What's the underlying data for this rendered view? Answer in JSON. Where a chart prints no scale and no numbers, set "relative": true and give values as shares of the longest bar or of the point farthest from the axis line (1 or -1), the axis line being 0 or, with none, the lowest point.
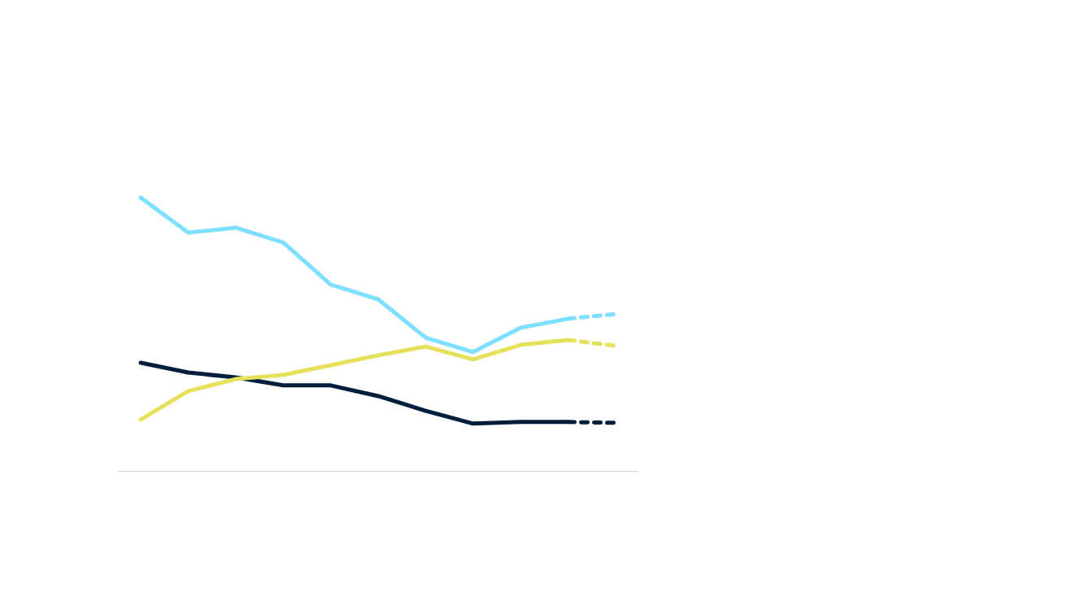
{
  "chart_data": {
    "type": "line",
    "relative": true,
    "categories": [
      null,
      null,
      null,
      null,
      null,
      null,
      null,
      null,
      null,
      null,
      null
    ],
    "legend": false,
    "grid": false,
    "marker": "none",
    "series": [
      {
        "color": "#001e3c",
        "line_style": "solid",
        "values": [
          0.396,
          0.36,
          0.342,
          0.313,
          0.313,
          0.274,
          0.22,
          0.173,
          0.179,
          0.179,
          null
        ]
      },
      {
        "color": "#e6e15a",
        "line_style": "solid",
        "values": [
          0.188,
          0.292,
          0.336,
          0.351,
          0.387,
          0.423,
          0.455,
          0.408,
          0.461,
          0.479,
          null
        ]
      },
      {
        "color": "#7fdfff",
        "line_style": "solid",
        "values": [
          1,
          0.872,
          0.89,
          0.836,
          0.682,
          0.628,
          0.488,
          0.435,
          0.524,
          0.557,
          null
        ]
      },
      {
        "color": "#001e3c",
        "line_style": "dashed",
        "values": [
          null,
          null,
          null,
          null,
          null,
          null,
          null,
          null,
          null,
          0.179,
          0.176
        ]
      },
      {
        "color": "#e6e15a",
        "line_style": "dashed",
        "values": [
          null,
          null,
          null,
          null,
          null,
          null,
          null,
          null,
          null,
          0.479,
          0.458
        ]
      },
      {
        "color": "#7fdfff",
        "line_style": "dashed",
        "values": [
          null,
          null,
          null,
          null,
          null,
          null,
          null,
          null,
          null,
          0.557,
          0.574
        ]
      }
    ]
  }
}
